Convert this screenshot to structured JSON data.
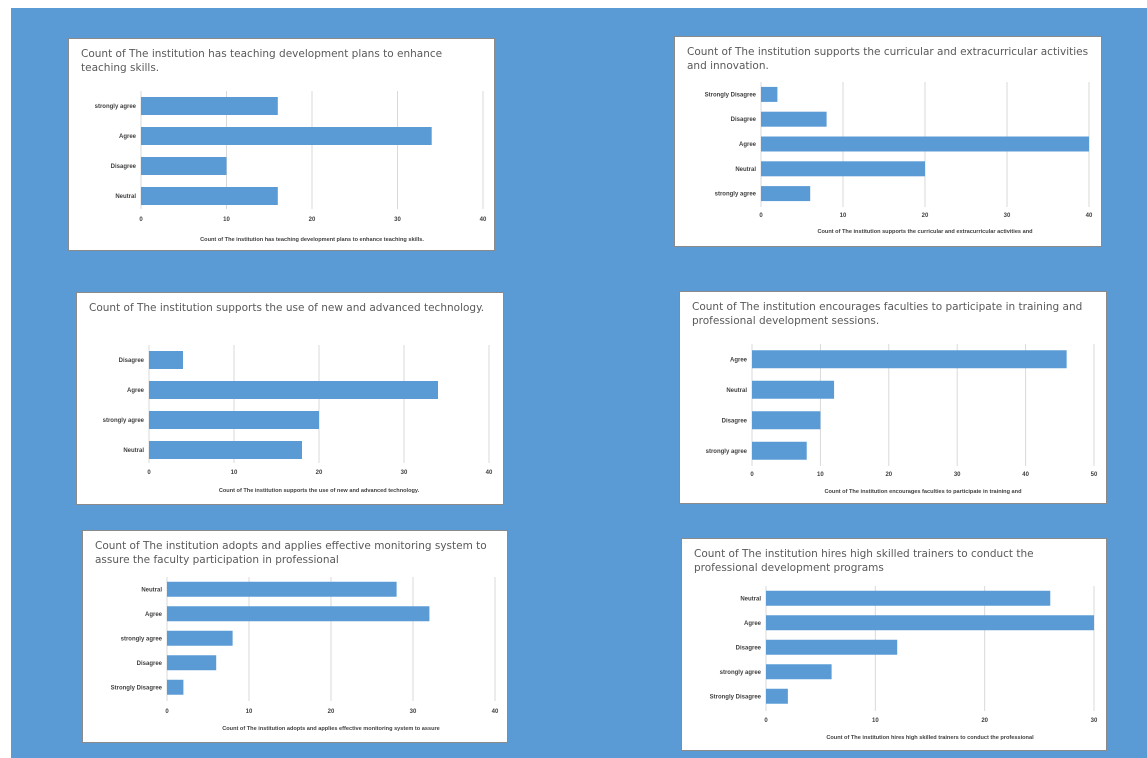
{
  "chart_data": [
    {
      "type": "bar",
      "orientation": "horizontal",
      "title": "Count of The institution has teaching development plans to enhance teaching skills.",
      "xlabel": "Count of The institution has teaching development plans to enhance teaching skills.",
      "categories": [
        "strongly agree",
        "Agree",
        "Disagree",
        "Neutral"
      ],
      "values": [
        16,
        34,
        10,
        16
      ],
      "xlim": [
        0,
        40
      ],
      "ticks": [
        0,
        10,
        20,
        30,
        40
      ],
      "grid": true,
      "colors": {
        "bar": "#5b9bd5"
      }
    },
    {
      "type": "bar",
      "orientation": "horizontal",
      "title": "Count of The institution supports the curricular and extracurricular activities and innovation.",
      "xlabel": "Count of The institution supports the curricular and extracurricular activities and",
      "categories": [
        "Strongly Disagree",
        "Disagree",
        "Agree",
        "Neutral",
        "strongly agree"
      ],
      "values": [
        2,
        8,
        40,
        20,
        6
      ],
      "xlim": [
        0,
        40
      ],
      "ticks": [
        0,
        10,
        20,
        30,
        40
      ],
      "grid": true,
      "colors": {
        "bar": "#5b9bd5"
      }
    },
    {
      "type": "bar",
      "orientation": "horizontal",
      "title": "Count of The institution supports the use of new and advanced technology.",
      "xlabel": "Count of The institution supports the use of new and advanced technology.",
      "categories": [
        "Disagree",
        "Agree",
        "strongly agree",
        "Neutral"
      ],
      "values": [
        4,
        34,
        20,
        18
      ],
      "xlim": [
        0,
        40
      ],
      "ticks": [
        0,
        10,
        20,
        30,
        40
      ],
      "grid": true,
      "colors": {
        "bar": "#5b9bd5"
      }
    },
    {
      "type": "bar",
      "orientation": "horizontal",
      "title": "Count of The institution encourages faculties to participate in training and professional development sessions.",
      "xlabel": "Count of The institution encourages faculties to participate in training and",
      "categories": [
        "Agree",
        "Neutral",
        "Disagree",
        "strongly agree"
      ],
      "values": [
        46,
        12,
        10,
        8
      ],
      "xlim": [
        0,
        50
      ],
      "ticks": [
        0,
        10,
        20,
        30,
        40,
        50
      ],
      "grid": true,
      "colors": {
        "bar": "#5b9bd5"
      }
    },
    {
      "type": "bar",
      "orientation": "horizontal",
      "title": "Count of The institution adopts and applies effective monitoring system to assure the faculty participation in professional",
      "xlabel": "Count of The institution adopts and applies effective monitoring system to assure",
      "categories": [
        "Neutral",
        "Agree",
        "strongly agree",
        "Disagree",
        "Strongly Disagree"
      ],
      "values": [
        28,
        32,
        8,
        6,
        2
      ],
      "xlim": [
        0,
        40
      ],
      "ticks": [
        0,
        10,
        20,
        30,
        40
      ],
      "grid": true,
      "colors": {
        "bar": "#5b9bd5"
      }
    },
    {
      "type": "bar",
      "orientation": "horizontal",
      "title": "Count of The institution hires high skilled trainers to conduct the professional development programs",
      "xlabel": "Count of The institution hires high skilled trainers to conduct the professional",
      "categories": [
        "Neutral",
        "Agree",
        "Disagree",
        "strongly agree",
        "Strongly Disagree"
      ],
      "values": [
        26,
        30,
        12,
        6,
        2
      ],
      "xlim": [
        0,
        30
      ],
      "ticks": [
        0,
        10,
        20,
        30
      ],
      "grid": true,
      "colors": {
        "bar": "#5b9bd5"
      }
    }
  ]
}
